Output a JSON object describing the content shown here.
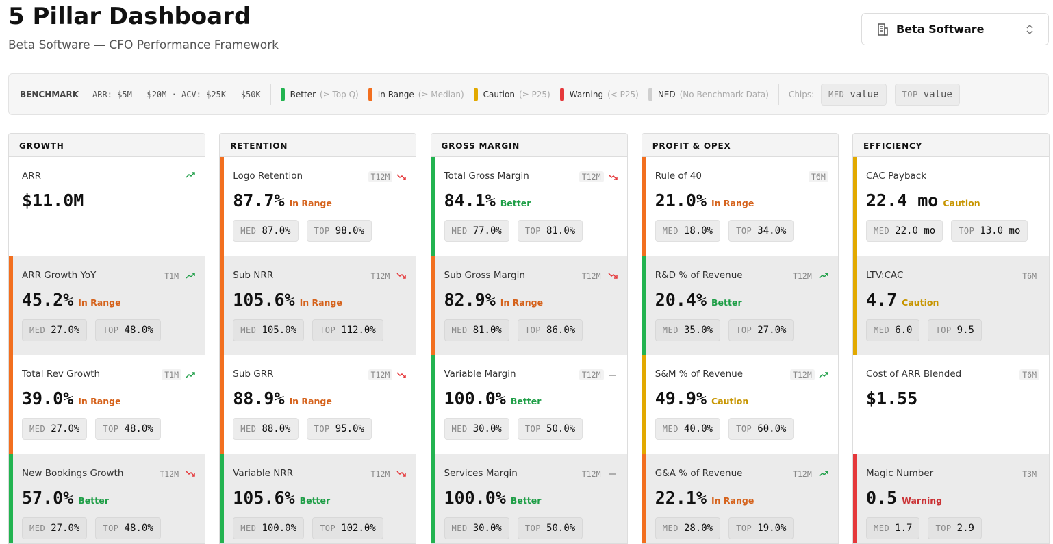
{
  "header": {
    "title": "5 Pillar Dashboard",
    "subtitle": "Beta Software — CFO Performance Framework",
    "selector": "Beta Software"
  },
  "legend": {
    "label": "BENCHMARK",
    "range": "ARR: $5M - $20M · ACV: $25K - $50K",
    "statuses": [
      {
        "name": "Better",
        "note": "(≥ Top Q)",
        "color": "#22b350"
      },
      {
        "name": "In Range",
        "note": "(≥ Median)",
        "color": "#f26f1f"
      },
      {
        "name": "Caution",
        "note": "(≥ P25)",
        "color": "#e2a900"
      },
      {
        "name": "Warning",
        "note": "(< P25)",
        "color": "#e5383b"
      },
      {
        "name": "NED",
        "note": "(No Benchmark Data)",
        "color": "#cfcfcf"
      }
    ],
    "chips_label": "Chips:",
    "chips": [
      {
        "key": "MED",
        "value": "value"
      },
      {
        "key": "TOP",
        "value": "value"
      }
    ]
  },
  "pillars": [
    {
      "title": "GROWTH",
      "metrics": [
        {
          "name": "ARR",
          "trend": "up",
          "value": "$11.0M"
        },
        {
          "name": "ARR Growth YoY",
          "period": "T1M",
          "trend": "up",
          "value": "45.2%",
          "status": "In Range",
          "chips": [
            {
              "key": "MED",
              "value": "27.0%"
            },
            {
              "key": "TOP",
              "value": "48.0%"
            }
          ]
        },
        {
          "name": "Total Rev Growth",
          "period": "T1M",
          "trend": "up",
          "value": "39.0%",
          "status": "In Range",
          "chips": [
            {
              "key": "MED",
              "value": "27.0%"
            },
            {
              "key": "TOP",
              "value": "48.0%"
            }
          ]
        },
        {
          "name": "New Bookings Growth",
          "period": "T12M",
          "trend": "down",
          "value": "57.0%",
          "status": "Better",
          "chips": [
            {
              "key": "MED",
              "value": "27.0%"
            },
            {
              "key": "TOP",
              "value": "48.0%"
            }
          ]
        }
      ]
    },
    {
      "title": "RETENTION",
      "metrics": [
        {
          "name": "Logo Retention",
          "period": "T12M",
          "trend": "down",
          "value": "87.7%",
          "status": "In Range",
          "chips": [
            {
              "key": "MED",
              "value": "87.0%"
            },
            {
              "key": "TOP",
              "value": "98.0%"
            }
          ]
        },
        {
          "name": "Sub NRR",
          "period": "T12M",
          "trend": "down",
          "value": "105.6%",
          "status": "In Range",
          "chips": [
            {
              "key": "MED",
              "value": "105.0%"
            },
            {
              "key": "TOP",
              "value": "112.0%"
            }
          ]
        },
        {
          "name": "Sub GRR",
          "period": "T12M",
          "trend": "down",
          "value": "88.9%",
          "status": "In Range",
          "chips": [
            {
              "key": "MED",
              "value": "88.0%"
            },
            {
              "key": "TOP",
              "value": "95.0%"
            }
          ]
        },
        {
          "name": "Variable NRR",
          "period": "T12M",
          "trend": "down",
          "value": "105.6%",
          "status": "Better",
          "chips": [
            {
              "key": "MED",
              "value": "100.0%"
            },
            {
              "key": "TOP",
              "value": "102.0%"
            }
          ]
        }
      ]
    },
    {
      "title": "GROSS MARGIN",
      "metrics": [
        {
          "name": "Total Gross Margin",
          "period": "T12M",
          "trend": "down",
          "value": "84.1%",
          "status": "Better",
          "chips": [
            {
              "key": "MED",
              "value": "77.0%"
            },
            {
              "key": "TOP",
              "value": "81.0%"
            }
          ]
        },
        {
          "name": "Sub Gross Margin",
          "period": "T12M",
          "trend": "down",
          "value": "82.9%",
          "status": "In Range",
          "chips": [
            {
              "key": "MED",
              "value": "81.0%"
            },
            {
              "key": "TOP",
              "value": "86.0%"
            }
          ]
        },
        {
          "name": "Variable Margin",
          "period": "T12M",
          "trend": "flat",
          "value": "100.0%",
          "status": "Better",
          "chips": [
            {
              "key": "MED",
              "value": "30.0%"
            },
            {
              "key": "TOP",
              "value": "50.0%"
            }
          ]
        },
        {
          "name": "Services Margin",
          "period": "T12M",
          "trend": "flat",
          "value": "100.0%",
          "status": "Better",
          "chips": [
            {
              "key": "MED",
              "value": "30.0%"
            },
            {
              "key": "TOP",
              "value": "50.0%"
            }
          ]
        }
      ]
    },
    {
      "title": "PROFIT & OPEX",
      "metrics": [
        {
          "name": "Rule of 40",
          "period": "T6M",
          "value": "21.0%",
          "status": "In Range",
          "chips": [
            {
              "key": "MED",
              "value": "18.0%"
            },
            {
              "key": "TOP",
              "value": "34.0%"
            }
          ]
        },
        {
          "name": "R&D % of Revenue",
          "period": "T12M",
          "trend": "up",
          "value": "20.4%",
          "status": "Better",
          "chips": [
            {
              "key": "MED",
              "value": "35.0%"
            },
            {
              "key": "TOP",
              "value": "27.0%"
            }
          ]
        },
        {
          "name": "S&M % of Revenue",
          "period": "T12M",
          "trend": "up",
          "value": "49.9%",
          "status": "Caution",
          "chips": [
            {
              "key": "MED",
              "value": "40.0%"
            },
            {
              "key": "TOP",
              "value": "60.0%"
            }
          ]
        },
        {
          "name": "G&A % of Revenue",
          "period": "T12M",
          "trend": "up",
          "value": "22.1%",
          "status": "In Range",
          "chips": [
            {
              "key": "MED",
              "value": "28.0%"
            },
            {
              "key": "TOP",
              "value": "19.0%"
            }
          ]
        }
      ]
    },
    {
      "title": "EFFICIENCY",
      "metrics": [
        {
          "name": "CAC Payback",
          "value": "22.4 mo",
          "status": "Caution",
          "chips": [
            {
              "key": "MED",
              "value": "22.0 mo"
            },
            {
              "key": "TOP",
              "value": "13.0 mo"
            }
          ]
        },
        {
          "name": "LTV:CAC",
          "period": "T6M",
          "value": "4.7",
          "status": "Caution",
          "chips": [
            {
              "key": "MED",
              "value": "6.0"
            },
            {
              "key": "TOP",
              "value": "9.5"
            }
          ]
        },
        {
          "name": "Cost of ARR Blended",
          "period": "T6M",
          "value": "$1.55"
        },
        {
          "name": "Magic Number",
          "period": "T3M",
          "value": "0.5",
          "status": "Warning",
          "chips": [
            {
              "key": "MED",
              "value": "1.7"
            },
            {
              "key": "TOP",
              "value": "2.9"
            }
          ]
        }
      ]
    }
  ]
}
